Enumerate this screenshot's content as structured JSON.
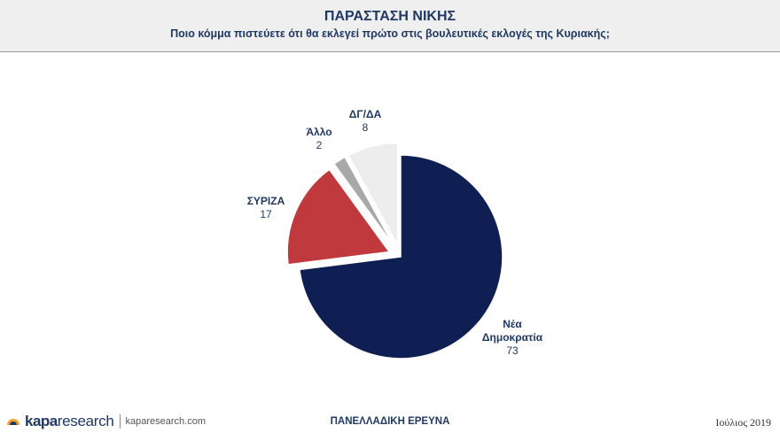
{
  "header": {
    "title": "ΠΑΡΑΣΤΑΣΗ ΝΙΚΗΣ",
    "subtitle": "Ποιο κόμμα πιστεύετε ότι θα εκλεγεί πρώτο στις βουλευτικές εκλογές της Κυριακής;"
  },
  "chart_data": {
    "type": "pie",
    "title": "ΠΑΡΑΣΤΑΣΗ ΝΙΚΗΣ",
    "subtitle": "Ποιο κόμμα πιστεύετε ότι θα εκλεγεί πρώτο στις βουλευτικές εκλογές της Κυριακής;",
    "slices": [
      {
        "label": "Νέα Δημοκρατία",
        "value": 73,
        "color": "#0f1f54"
      },
      {
        "label": "ΣΥΡΙΖΑ",
        "value": 17,
        "color": "#c0393d"
      },
      {
        "label": "Άλλο",
        "value": 2,
        "color": "#a8a8a8"
      },
      {
        "label": "ΔΓ/ΔΑ",
        "value": 8,
        "color": "#ededed"
      }
    ],
    "legend": "none",
    "exploded": true
  },
  "footer": {
    "brand_bold": "kapa",
    "brand_light": "research",
    "site": "kaparesearch.com",
    "center_text": "ΠΑΝΕΛΛΑΔΙΚΗ ΕΡΕΥΝΑ",
    "date": "Ιούλιος 2019"
  }
}
